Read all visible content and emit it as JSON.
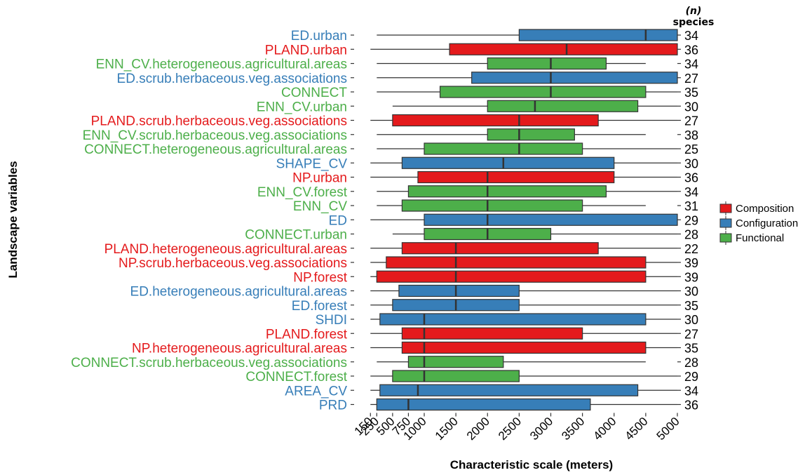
{
  "chart_data": {
    "type": "boxplot",
    "xlabel": "Characteristic scale (meters)",
    "ylabel": "Landscape variables",
    "n_header": [
      "(n)",
      "species"
    ],
    "x_ticks": [
      150,
      250,
      500,
      750,
      1000,
      1500,
      2000,
      2500,
      3000,
      3500,
      4000,
      4500,
      5000
    ],
    "xlim": [
      150,
      5000
    ],
    "legend": [
      {
        "name": "Composition",
        "color": "#e41a1c"
      },
      {
        "name": "Configuration",
        "color": "#377eb8"
      },
      {
        "name": "Functional",
        "color": "#4daf4a"
      }
    ],
    "rows": [
      {
        "label": "ED.urban",
        "group": "Configuration",
        "min": 250,
        "q1": 2500,
        "median": 4500,
        "q3": 5000,
        "max": 5000,
        "n": 34
      },
      {
        "label": "PLAND.urban",
        "group": "Composition",
        "min": 150,
        "q1": 1400,
        "median": 3250,
        "q3": 5000,
        "max": 5000,
        "n": 36
      },
      {
        "label": "ENN_CV.heterogeneous.agricultural.areas",
        "group": "Functional",
        "min": 250,
        "q1": 2000,
        "median": 3000,
        "q3": 3875,
        "max": 4500,
        "n": 34
      },
      {
        "label": "ED.scrub.herbaceous.veg.associations",
        "group": "Configuration",
        "min": 250,
        "q1": 1750,
        "median": 3000,
        "q3": 5000,
        "max": 5000,
        "n": 27
      },
      {
        "label": "CONNECT",
        "group": "Functional",
        "min": 250,
        "q1": 1250,
        "median": 3000,
        "q3": 4500,
        "max": 5000,
        "n": 35
      },
      {
        "label": "ENN_CV.urban",
        "group": "Functional",
        "min": 500,
        "q1": 2000,
        "median": 2750,
        "q3": 4375,
        "max": 5000,
        "n": 30
      },
      {
        "label": "PLAND.scrub.herbaceous.veg.associations",
        "group": "Composition",
        "min": 150,
        "q1": 500,
        "median": 2500,
        "q3": 3750,
        "max": 5000,
        "n": 27
      },
      {
        "label": "ENN_CV.scrub.herbaceous.veg.associations",
        "group": "Functional",
        "min": 250,
        "q1": 2000,
        "median": 2500,
        "q3": 3375,
        "max": 4500,
        "n": 38
      },
      {
        "label": "CONNECT.heterogeneous.agricultural.areas",
        "group": "Functional",
        "min": 250,
        "q1": 1000,
        "median": 2500,
        "q3": 3500,
        "max": 5000,
        "n": 25
      },
      {
        "label": "SHAPE_CV",
        "group": "Configuration",
        "min": 150,
        "q1": 650,
        "median": 2250,
        "q3": 4000,
        "max": 5000,
        "n": 30
      },
      {
        "label": "NP.urban",
        "group": "Composition",
        "min": 150,
        "q1": 900,
        "median": 2000,
        "q3": 4000,
        "max": 5000,
        "n": 36
      },
      {
        "label": "ENN_CV.forest",
        "group": "Functional",
        "min": 250,
        "q1": 750,
        "median": 2000,
        "q3": 3875,
        "max": 5000,
        "n": 34
      },
      {
        "label": "ENN_CV",
        "group": "Functional",
        "min": 250,
        "q1": 650,
        "median": 2000,
        "q3": 3500,
        "max": 4500,
        "n": 31
      },
      {
        "label": "ED",
        "group": "Configuration",
        "min": 150,
        "q1": 1000,
        "median": 2000,
        "q3": 5000,
        "max": 5000,
        "n": 29
      },
      {
        "label": "CONNECT.urban",
        "group": "Functional",
        "min": 500,
        "q1": 1000,
        "median": 2000,
        "q3": 3000,
        "max": 5000,
        "n": 28
      },
      {
        "label": "PLAND.heterogeneous.agricultural.areas",
        "group": "Composition",
        "min": 150,
        "q1": 650,
        "median": 1500,
        "q3": 3750,
        "max": 5000,
        "n": 22
      },
      {
        "label": "NP.scrub.herbaceous.veg.associations",
        "group": "Composition",
        "min": 150,
        "q1": 400,
        "median": 1500,
        "q3": 4500,
        "max": 5000,
        "n": 39
      },
      {
        "label": "NP.forest",
        "group": "Composition",
        "min": 150,
        "q1": 250,
        "median": 1500,
        "q3": 4500,
        "max": 5000,
        "n": 39
      },
      {
        "label": "ED.heterogeneous.agricultural.areas",
        "group": "Configuration",
        "min": 150,
        "q1": 600,
        "median": 1500,
        "q3": 2500,
        "max": 5000,
        "n": 30
      },
      {
        "label": "ED.forest",
        "group": "Configuration",
        "min": 150,
        "q1": 500,
        "median": 1500,
        "q3": 2500,
        "max": 5000,
        "n": 35
      },
      {
        "label": "SHDI",
        "group": "Configuration",
        "min": 150,
        "q1": 300,
        "median": 1000,
        "q3": 4500,
        "max": 5000,
        "n": 30
      },
      {
        "label": "PLAND.forest",
        "group": "Composition",
        "min": 150,
        "q1": 650,
        "median": 1000,
        "q3": 3500,
        "max": 5000,
        "n": 27
      },
      {
        "label": "NP.heterogeneous.agricultural.areas",
        "group": "Composition",
        "min": 150,
        "q1": 650,
        "median": 1000,
        "q3": 4500,
        "max": 5000,
        "n": 35
      },
      {
        "label": "CONNECT.scrub.herbaceous.veg.associations",
        "group": "Functional",
        "min": 250,
        "q1": 750,
        "median": 1000,
        "q3": 2250,
        "max": 4500,
        "n": 28
      },
      {
        "label": "CONNECT.forest",
        "group": "Functional",
        "min": 150,
        "q1": 500,
        "median": 1000,
        "q3": 2500,
        "max": 5000,
        "n": 29
      },
      {
        "label": "AREA_CV",
        "group": "Configuration",
        "min": 150,
        "q1": 300,
        "median": 900,
        "q3": 4375,
        "max": 5000,
        "n": 34
      },
      {
        "label": "PRD",
        "group": "Configuration",
        "min": 150,
        "q1": 250,
        "median": 750,
        "q3": 3625,
        "max": 5000,
        "n": 36
      }
    ]
  }
}
